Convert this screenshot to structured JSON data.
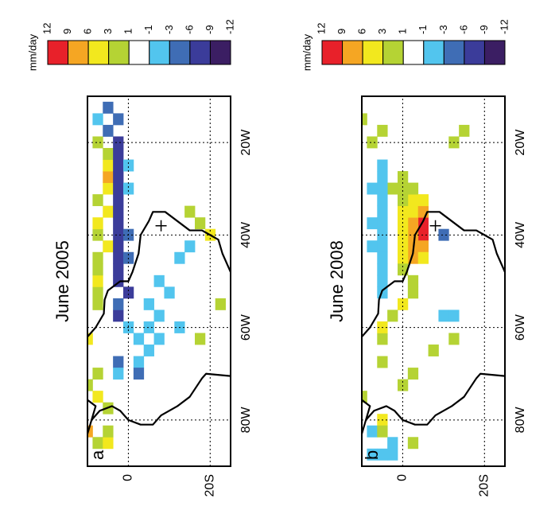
{
  "chart_data": [
    {
      "type": "heatmap",
      "label": "a",
      "title": "June 2005",
      "units": "mm/day",
      "xlim": [
        -90,
        -10
      ],
      "ylim": [
        -25,
        10
      ],
      "xticks": [
        {
          "value": -80,
          "label": "80W"
        },
        {
          "value": -60,
          "label": "60W"
        },
        {
          "value": -40,
          "label": "40W"
        },
        {
          "value": -20,
          "label": "20W"
        }
      ],
      "yticks": [
        0,
        {
          "value": -20,
          "label": "20S"
        }
      ],
      "grid": true,
      "levels": [
        12,
        9,
        6,
        3,
        1,
        -1,
        -3,
        -6,
        -9,
        -12
      ],
      "colors": [
        "#e8212a",
        "#f5a623",
        "#f2e81e",
        "#b5d334",
        "#ffffff",
        "#52c5ee",
        "#3f6db5",
        "#3b3c9a",
        "#3b1e63"
      ],
      "cells": [
        [
          -85,
          7.5,
          2
        ],
        [
          -85,
          5,
          4
        ],
        [
          -82.5,
          5,
          2
        ],
        [
          -77.5,
          5,
          2
        ],
        [
          -55,
          7.5,
          2
        ],
        [
          -52.5,
          7.5,
          2
        ],
        [
          -50,
          7.5,
          4
        ],
        [
          -47.5,
          7.5,
          2
        ],
        [
          -45,
          7.5,
          2
        ],
        [
          -42.5,
          5,
          4
        ],
        [
          -40,
          7.5,
          2
        ],
        [
          -37.5,
          7.5,
          4
        ],
        [
          -35,
          5,
          4
        ],
        [
          -32.5,
          7.5,
          2
        ],
        [
          -30,
          5,
          4
        ],
        [
          -27.5,
          5,
          7
        ],
        [
          -25,
          5,
          4
        ],
        [
          -22.5,
          5,
          2
        ],
        [
          -20,
          7.5,
          2
        ],
        [
          -62.5,
          10,
          4
        ],
        [
          -72.5,
          10,
          2
        ],
        [
          -75,
          7.5,
          4
        ],
        [
          -70,
          7.5,
          2
        ],
        [
          -82.5,
          10,
          7
        ],
        [
          -57.5,
          2.5,
          -7
        ],
        [
          -55,
          2.5,
          -4
        ],
        [
          -52.5,
          0,
          -7
        ],
        [
          -50,
          2.5,
          -7
        ],
        [
          -47.5,
          2.5,
          -7
        ],
        [
          -45,
          2.5,
          -7
        ],
        [
          -42.5,
          2.5,
          -7
        ],
        [
          -40,
          2.5,
          -7
        ],
        [
          -37.5,
          2.5,
          -7
        ],
        [
          -35,
          2.5,
          -7
        ],
        [
          -32.5,
          2.5,
          -7
        ],
        [
          -30,
          2.5,
          -7
        ],
        [
          -27.5,
          2.5,
          -7
        ],
        [
          -25,
          2.5,
          -7
        ],
        [
          -22.5,
          2.5,
          -7
        ],
        [
          -20,
          2.5,
          -7
        ],
        [
          -17.5,
          5,
          -4
        ],
        [
          -15,
          2.5,
          -4
        ],
        [
          -12.5,
          5,
          -4
        ],
        [
          -15,
          7.5,
          -2
        ],
        [
          -25,
          0,
          -2
        ],
        [
          -30,
          0,
          -2
        ],
        [
          -45,
          0,
          -4
        ],
        [
          -40,
          0,
          -4
        ],
        [
          -60,
          0,
          -2
        ],
        [
          -62.5,
          -2.5,
          -2
        ],
        [
          -60,
          -5,
          -2
        ],
        [
          -57.5,
          -7.5,
          -2
        ],
        [
          -62.5,
          -7.5,
          -2
        ],
        [
          -65,
          -5,
          -2
        ],
        [
          -67.5,
          -2.5,
          -2
        ],
        [
          -67.5,
          2.5,
          -4
        ],
        [
          -70,
          2.5,
          -2
        ],
        [
          -70,
          -2.5,
          -4
        ],
        [
          -55,
          -5,
          -2
        ],
        [
          -50,
          -7.5,
          -2
        ],
        [
          -52.5,
          -10,
          -2
        ],
        [
          -60,
          -12.5,
          -2
        ],
        [
          -45,
          -12.5,
          -2
        ],
        [
          -42.5,
          -15,
          -2
        ],
        [
          -37.5,
          -17.5,
          2
        ],
        [
          -40,
          -20,
          4
        ],
        [
          -35,
          -15,
          2
        ],
        [
          -55,
          -22.5,
          2
        ],
        [
          -62.5,
          -17.5,
          2
        ]
      ]
    },
    {
      "type": "heatmap",
      "label": "b",
      "title": "June 2008",
      "units": "mm/day",
      "xlim": [
        -90,
        -10
      ],
      "ylim": [
        -25,
        10
      ],
      "xticks": [
        {
          "value": -80,
          "label": "80W"
        },
        {
          "value": -60,
          "label": "60W"
        },
        {
          "value": -40,
          "label": "40W"
        },
        {
          "value": -20,
          "label": "20W"
        }
      ],
      "yticks": [
        0,
        {
          "value": -20,
          "label": "20S"
        }
      ],
      "grid": true,
      "levels": [
        12,
        9,
        6,
        3,
        1,
        -1,
        -3,
        -6,
        -9,
        -12
      ],
      "colors": [
        "#e8212a",
        "#f5a623",
        "#f2e81e",
        "#b5d334",
        "#ffffff",
        "#52c5ee",
        "#3f6db5",
        "#3b3c9a",
        "#3b1e63"
      ],
      "cells": [
        [
          -42.5,
          -2.5,
          7
        ],
        [
          -40,
          -5,
          10
        ],
        [
          -40,
          -2.5,
          7
        ],
        [
          -37.5,
          -5,
          10
        ],
        [
          -37.5,
          -2.5,
          7
        ],
        [
          -35,
          -2.5,
          4
        ],
        [
          -35,
          0,
          4
        ],
        [
          -37.5,
          0,
          4
        ],
        [
          -40,
          0,
          4
        ],
        [
          -42.5,
          0,
          4
        ],
        [
          -45,
          -2.5,
          7
        ],
        [
          -45,
          0,
          4
        ],
        [
          -47.5,
          0,
          2
        ],
        [
          -32.5,
          -2.5,
          4
        ],
        [
          -32.5,
          0,
          2
        ],
        [
          -30,
          0,
          2
        ],
        [
          -30,
          -2.5,
          2
        ],
        [
          -35,
          -5,
          7
        ],
        [
          -32.5,
          -5,
          4
        ],
        [
          -42.5,
          -5,
          7
        ],
        [
          -45,
          -5,
          4
        ],
        [
          -50,
          -2.5,
          2
        ],
        [
          -52.5,
          -2.5,
          2
        ],
        [
          -55,
          0,
          4
        ],
        [
          -57.5,
          2.5,
          2
        ],
        [
          -62.5,
          5,
          2
        ],
        [
          -60,
          5,
          4
        ],
        [
          -30,
          2.5,
          2
        ],
        [
          -27.5,
          0,
          2
        ],
        [
          -25,
          5,
          -2
        ],
        [
          -27.5,
          5,
          -2
        ],
        [
          -30,
          5,
          -2
        ],
        [
          -32.5,
          5,
          -2
        ],
        [
          -35,
          5,
          -2
        ],
        [
          -37.5,
          5,
          -2
        ],
        [
          -40,
          5,
          -2
        ],
        [
          -42.5,
          5,
          -2
        ],
        [
          -45,
          5,
          -2
        ],
        [
          -47.5,
          5,
          -2
        ],
        [
          -50,
          5,
          -2
        ],
        [
          -52.5,
          5,
          -2
        ],
        [
          -30,
          7.5,
          -2
        ],
        [
          -37.5,
          7.5,
          -2
        ],
        [
          -42.5,
          7.5,
          -2
        ],
        [
          -87.5,
          7.5,
          -2
        ],
        [
          -87.5,
          5,
          -2
        ],
        [
          -85,
          2.5,
          -2
        ],
        [
          -87.5,
          2.5,
          -2
        ],
        [
          -82.5,
          7.5,
          -2
        ],
        [
          -57.5,
          -12.5,
          -2
        ],
        [
          -57.5,
          -10,
          -2
        ],
        [
          -40,
          -10,
          -4
        ],
        [
          -20,
          7.5,
          2
        ],
        [
          -17.5,
          5,
          2
        ],
        [
          -20,
          -12.5,
          2
        ],
        [
          -17.5,
          -15,
          2
        ],
        [
          -72.5,
          0,
          2
        ],
        [
          -70,
          -2.5,
          2
        ],
        [
          -65,
          -7.5,
          2
        ],
        [
          -62.5,
          -12.5,
          2
        ],
        [
          -75,
          10,
          2
        ],
        [
          -67.5,
          5,
          2
        ],
        [
          -80,
          5,
          4
        ],
        [
          -82.5,
          5,
          2
        ],
        [
          -85,
          -2.5,
          2
        ],
        [
          -15,
          10,
          2
        ]
      ]
    }
  ]
}
